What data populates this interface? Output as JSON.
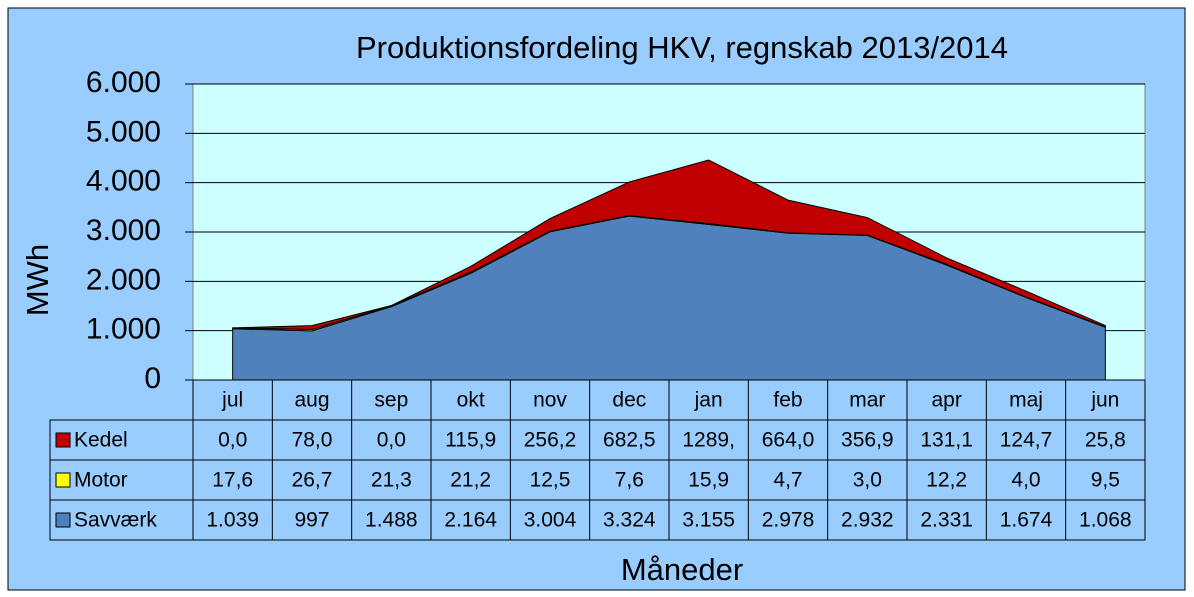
{
  "chart_data": {
    "type": "area",
    "stacked": true,
    "title": "Produktionsfordeling HKV, regnskab 2013/2014",
    "y_label": "MWh",
    "x_label": "Måneder",
    "categories": [
      "jul",
      "aug",
      "sep",
      "okt",
      "nov",
      "dec",
      "jan",
      "feb",
      "mar",
      "apr",
      "maj",
      "jun"
    ],
    "series": [
      {
        "name": "Kedel",
        "color": "#c00000",
        "values": [
          0.0,
          78.0,
          0.0,
          115.9,
          256.2,
          682.5,
          1289,
          664.0,
          356.9,
          131.1,
          124.7,
          25.8
        ],
        "value_labels": [
          "0,0",
          "78,0",
          "0,0",
          "115,9",
          "256,2",
          "682,5",
          "1289,",
          "664,0",
          "356,9",
          "131,1",
          "124,7",
          "25,8"
        ]
      },
      {
        "name": "Motor",
        "color": "#ffff00",
        "values": [
          17.6,
          26.7,
          21.3,
          21.2,
          12.5,
          7.6,
          15.9,
          4.7,
          3.0,
          12.2,
          4.0,
          9.5
        ],
        "value_labels": [
          "17,6",
          "26,7",
          "21,3",
          "21,2",
          "12,5",
          "7,6",
          "15,9",
          "4,7",
          "3,0",
          "12,2",
          "4,0",
          "9,5"
        ]
      },
      {
        "name": "Savværk",
        "color": "#4f81bd",
        "values": [
          1039,
          997,
          1488,
          2164,
          3004,
          3324,
          3155,
          2978,
          2932,
          2331,
          1674,
          1068
        ],
        "value_labels": [
          "1.039",
          "997",
          "1.488",
          "2.164",
          "3.004",
          "3.324",
          "3.155",
          "2.978",
          "2.932",
          "2.331",
          "1.674",
          "1.068"
        ]
      }
    ],
    "ylim": [
      0,
      6000
    ],
    "yticks": [
      0,
      {
        "value": 1000,
        "label": "1.000"
      },
      {
        "value": 2000,
        "label": "2.000"
      },
      {
        "value": 3000,
        "label": "3.000"
      },
      {
        "value": 4000,
        "label": "4.000"
      },
      {
        "value": 5000,
        "label": "5.000"
      },
      {
        "value": 6000,
        "label": "6.000"
      }
    ],
    "grid": true
  }
}
